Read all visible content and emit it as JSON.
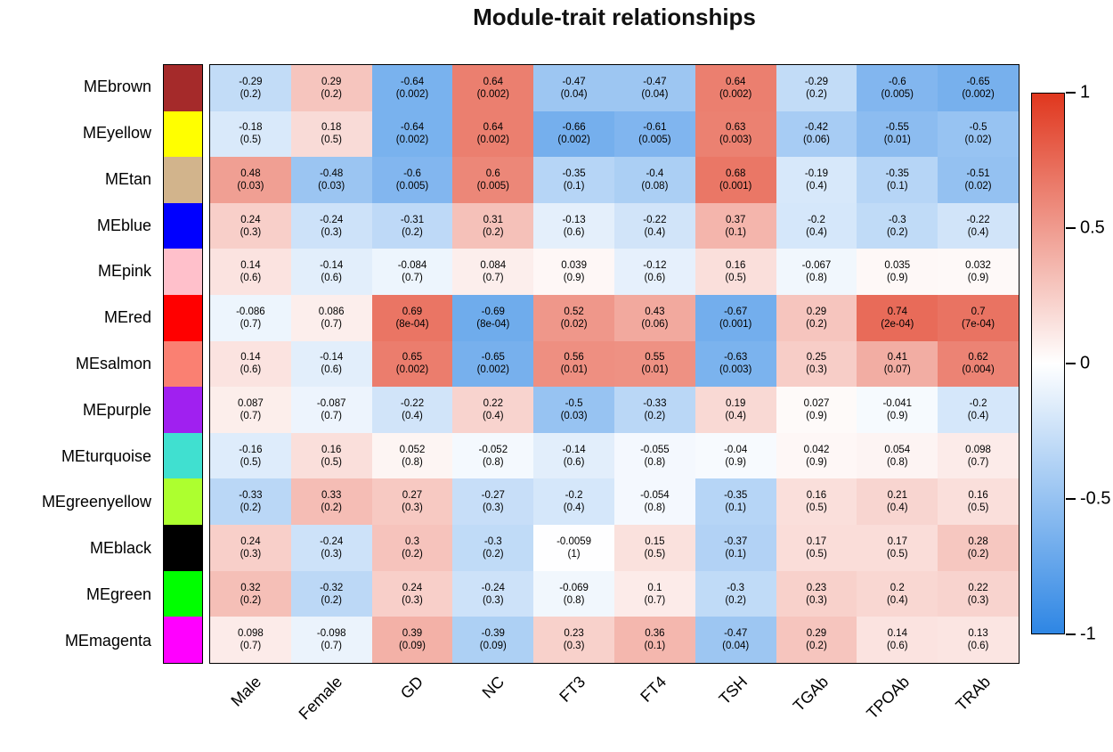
{
  "title": "Module-trait relationships",
  "chart_data": {
    "type": "heatmap",
    "title": "Module-trait relationships",
    "x_labels": [
      "Male",
      "Female",
      "GD",
      "NC",
      "FT3",
      "FT4",
      "TSH",
      "TGAb",
      "TPOAb",
      "TRAb"
    ],
    "rows": [
      {
        "module": "MEbrown",
        "color": "#A52A2A",
        "correlations": [
          -0.29,
          0.29,
          -0.64,
          0.64,
          -0.47,
          -0.47,
          0.64,
          -0.29,
          -0.6,
          -0.65
        ],
        "p": [
          "0.2",
          "0.2",
          "0.002",
          "0.002",
          "0.04",
          "0.04",
          "0.002",
          "0.2",
          "0.005",
          "0.002"
        ]
      },
      {
        "module": "MEyellow",
        "color": "#FFFF00",
        "correlations": [
          -0.18,
          0.18,
          -0.64,
          0.64,
          -0.66,
          -0.61,
          0.63,
          -0.42,
          -0.55,
          -0.5
        ],
        "p": [
          "0.5",
          "0.5",
          "0.002",
          "0.002",
          "0.002",
          "0.005",
          "0.003",
          "0.06",
          "0.01",
          "0.02"
        ]
      },
      {
        "module": "MEtan",
        "color": "#D2B48C",
        "correlations": [
          0.48,
          -0.48,
          -0.6,
          0.6,
          -0.35,
          -0.4,
          0.68,
          -0.19,
          -0.35,
          -0.51
        ],
        "p": [
          "0.03",
          "0.03",
          "0.005",
          "0.005",
          "0.1",
          "0.08",
          "0.001",
          "0.4",
          "0.1",
          "0.02"
        ]
      },
      {
        "module": "MEblue",
        "color": "#0000FF",
        "correlations": [
          0.24,
          -0.24,
          -0.31,
          0.31,
          -0.13,
          -0.22,
          0.37,
          -0.2,
          -0.3,
          -0.22
        ],
        "p": [
          "0.3",
          "0.3",
          "0.2",
          "0.2",
          "0.6",
          "0.4",
          "0.1",
          "0.4",
          "0.2",
          "0.4"
        ]
      },
      {
        "module": "MEpink",
        "color": "#FFC0CB",
        "correlations": [
          0.14,
          -0.14,
          -0.084,
          0.084,
          0.039,
          -0.12,
          0.16,
          -0.067,
          0.035,
          0.032
        ],
        "p": [
          "0.6",
          "0.6",
          "0.7",
          "0.7",
          "0.9",
          "0.6",
          "0.5",
          "0.8",
          "0.9",
          "0.9"
        ]
      },
      {
        "module": "MEred",
        "color": "#FF0000",
        "correlations": [
          -0.086,
          0.086,
          0.69,
          -0.69,
          0.52,
          0.43,
          -0.67,
          0.29,
          0.74,
          0.7
        ],
        "p": [
          "0.7",
          "0.7",
          "8e-04",
          "8e-04",
          "0.02",
          "0.06",
          "0.001",
          "0.2",
          "2e-04",
          "7e-04"
        ]
      },
      {
        "module": "MEsalmon",
        "color": "#FA8072",
        "correlations": [
          0.14,
          -0.14,
          0.65,
          -0.65,
          0.56,
          0.55,
          -0.63,
          0.25,
          0.41,
          0.62
        ],
        "p": [
          "0.6",
          "0.6",
          "0.002",
          "0.002",
          "0.01",
          "0.01",
          "0.003",
          "0.3",
          "0.07",
          "0.004"
        ]
      },
      {
        "module": "MEpurple",
        "color": "#A020F0",
        "correlations": [
          0.087,
          -0.087,
          -0.22,
          0.22,
          -0.5,
          -0.33,
          0.19,
          0.027,
          -0.041,
          -0.2
        ],
        "p": [
          "0.7",
          "0.7",
          "0.4",
          "0.4",
          "0.03",
          "0.2",
          "0.4",
          "0.9",
          "0.9",
          "0.4"
        ]
      },
      {
        "module": "MEturquoise",
        "color": "#40E0D0",
        "correlations": [
          -0.16,
          0.16,
          0.052,
          -0.052,
          -0.14,
          -0.055,
          -0.04,
          0.042,
          0.054,
          0.098
        ],
        "p": [
          "0.5",
          "0.5",
          "0.8",
          "0.8",
          "0.6",
          "0.8",
          "0.9",
          "0.9",
          "0.8",
          "0.7"
        ]
      },
      {
        "module": "MEgreenyellow",
        "color": "#ADFF2F",
        "correlations": [
          -0.33,
          0.33,
          0.27,
          -0.27,
          -0.2,
          -0.054,
          -0.35,
          0.16,
          0.21,
          0.16
        ],
        "p": [
          "0.2",
          "0.2",
          "0.3",
          "0.3",
          "0.4",
          "0.8",
          "0.1",
          "0.5",
          "0.4",
          "0.5"
        ]
      },
      {
        "module": "MEblack",
        "color": "#000000",
        "correlations": [
          0.24,
          -0.24,
          0.3,
          -0.3,
          -0.0059,
          0.15,
          -0.37,
          0.17,
          0.17,
          0.28
        ],
        "p": [
          "0.3",
          "0.3",
          "0.2",
          "0.2",
          "1",
          "0.5",
          "0.1",
          "0.5",
          "0.5",
          "0.2"
        ]
      },
      {
        "module": "MEgreen",
        "color": "#00FF00",
        "correlations": [
          0.32,
          -0.32,
          0.24,
          -0.24,
          -0.069,
          0.1,
          -0.3,
          0.23,
          0.2,
          0.22
        ],
        "p": [
          "0.2",
          "0.2",
          "0.3",
          "0.3",
          "0.8",
          "0.7",
          "0.2",
          "0.3",
          "0.4",
          "0.3"
        ]
      },
      {
        "module": "MEmagenta",
        "color": "#FF00FF",
        "correlations": [
          0.098,
          -0.098,
          0.39,
          -0.39,
          0.23,
          0.36,
          -0.47,
          0.29,
          0.14,
          0.13
        ],
        "p": [
          "0.7",
          "0.7",
          "0.09",
          "0.09",
          "0.3",
          "0.1",
          "0.04",
          "0.2",
          "0.6",
          "0.6"
        ]
      }
    ],
    "colorbar": {
      "range": [
        -1,
        1
      ],
      "positive_color": "#E0371E",
      "negative_color": "#2E86E4",
      "mid_color": "#FFFFFF",
      "ticks": [
        {
          "label": "1",
          "value": 1
        },
        {
          "label": "0.5",
          "value": 0.5
        },
        {
          "label": "0",
          "value": 0
        },
        {
          "label": "-0.5",
          "value": -0.5
        },
        {
          "label": "-1",
          "value": -1
        }
      ]
    }
  }
}
